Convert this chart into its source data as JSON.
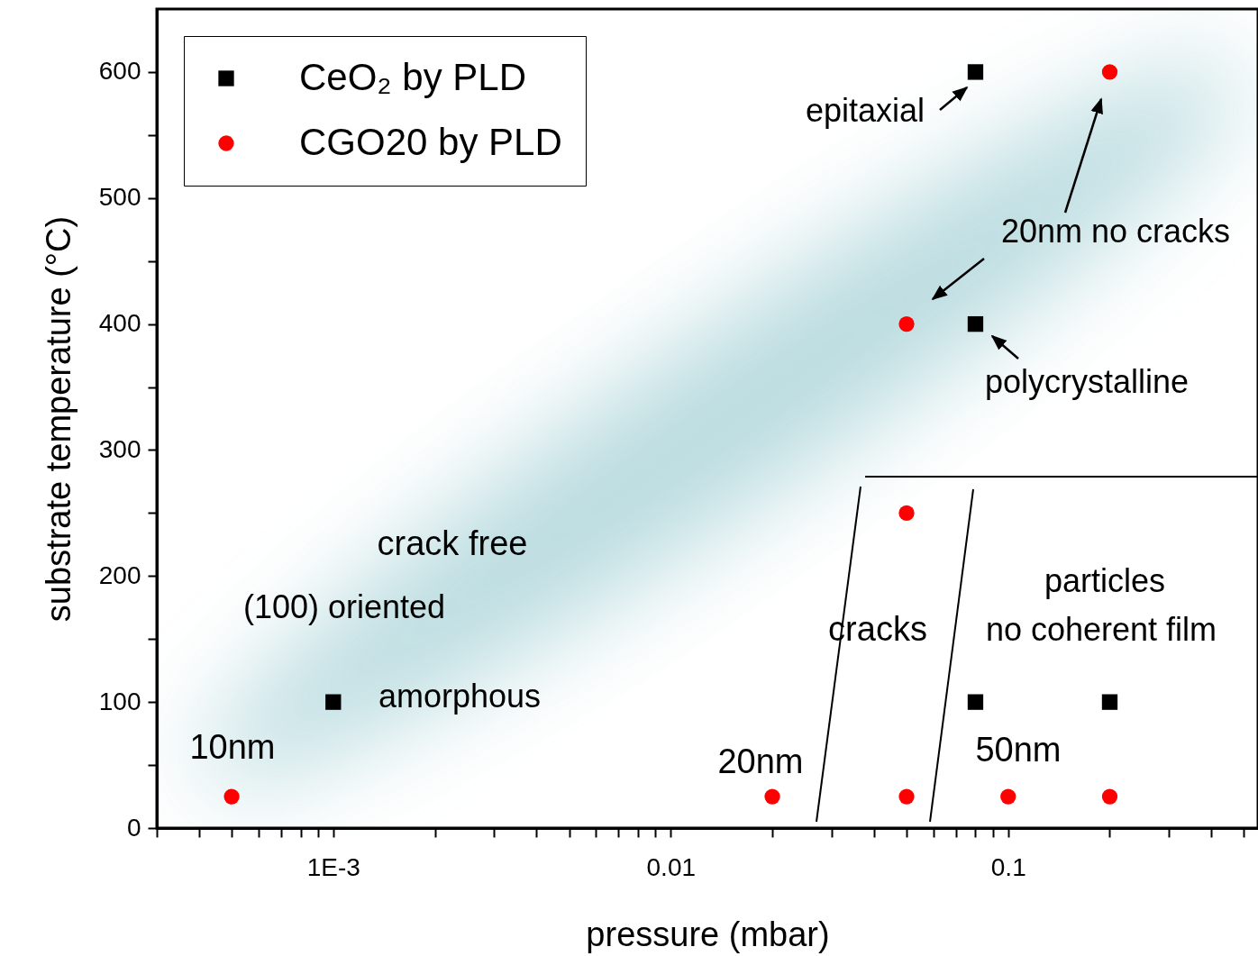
{
  "chart_data": {
    "type": "scatter",
    "xlabel": "pressure (mbar)",
    "ylabel": "substrate temperature (°C)",
    "log": "x",
    "grid": false,
    "legend": "top left",
    "xlim": [
      0.0003,
      0.55
    ],
    "ylim": [
      0,
      650
    ],
    "xticks": [
      {
        "value": 0.0003,
        "label": null
      },
      {
        "value": 0.0004,
        "label": null
      },
      {
        "value": 0.0005,
        "label": null
      },
      {
        "value": 0.0006,
        "label": null
      },
      {
        "value": 0.0007,
        "label": null
      },
      {
        "value": 0.0008,
        "label": null
      },
      {
        "value": 0.0009,
        "label": null
      },
      {
        "value": 0.001,
        "label": "1E-3"
      },
      {
        "value": 0.002,
        "label": null
      },
      {
        "value": 0.003,
        "label": null
      },
      {
        "value": 0.004,
        "label": null
      },
      {
        "value": 0.005,
        "label": null
      },
      {
        "value": 0.006,
        "label": null
      },
      {
        "value": 0.007,
        "label": null
      },
      {
        "value": 0.008,
        "label": null
      },
      {
        "value": 0.009,
        "label": null
      },
      0.01,
      {
        "value": 0.02,
        "label": null
      },
      {
        "value": 0.03,
        "label": null
      },
      {
        "value": 0.04,
        "label": null
      },
      {
        "value": 0.05,
        "label": null
      },
      {
        "value": 0.06,
        "label": null
      },
      {
        "value": 0.07,
        "label": null
      },
      {
        "value": 0.08,
        "label": null
      },
      {
        "value": 0.09,
        "label": null
      },
      0.1,
      {
        "value": 0.2,
        "label": null
      },
      {
        "value": 0.3,
        "label": null
      },
      {
        "value": 0.4,
        "label": null
      },
      {
        "value": 0.5,
        "label": null
      }
    ],
    "yticks": [
      0,
      {
        "value": 50,
        "label": null
      },
      100,
      {
        "value": 150,
        "label": null
      },
      200,
      {
        "value": 250,
        "label": null
      },
      300,
      {
        "value": 350,
        "label": null
      },
      400,
      {
        "value": 450,
        "label": null
      },
      500,
      {
        "value": 550,
        "label": null
      },
      600
    ],
    "series": [
      {
        "name": "CeO₂ by PLD",
        "color": "#000000",
        "marker": "square",
        "x": [
          0.08,
          0.08,
          0.001,
          0.08,
          0.2
        ],
        "values": [
          600,
          400,
          100,
          100,
          100
        ]
      },
      {
        "name": "CGO20 by PLD",
        "color": "#ff0000",
        "marker": "circle",
        "x": [
          0.2,
          0.05,
          0.05,
          0.0005,
          0.02,
          0.05,
          0.1,
          0.2
        ],
        "values": [
          600,
          400,
          250,
          25,
          25,
          25,
          25,
          25
        ]
      }
    ],
    "annotations": [
      "epitaxial",
      "20nm no cracks",
      "polycrystalline",
      "crack free",
      "(100) oriented",
      "amorphous",
      "10nm",
      "20nm",
      "cracks",
      "particles",
      "no coherent film",
      "50nm"
    ]
  }
}
